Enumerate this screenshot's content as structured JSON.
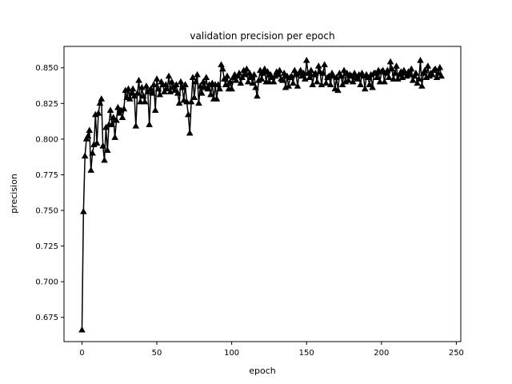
{
  "chart_data": {
    "type": "line",
    "title": "validation precision per epoch",
    "xlabel": "epoch",
    "ylabel": "precision",
    "xlim": [
      -12,
      253
    ],
    "ylim": [
      0.658,
      0.865
    ],
    "xticks": [
      0,
      50,
      100,
      150,
      200,
      250
    ],
    "yticks": [
      0.675,
      0.7,
      0.725,
      0.75,
      0.775,
      0.8,
      0.825,
      0.85
    ],
    "ytick_labels": [
      "0.675",
      "0.700",
      "0.725",
      "0.750",
      "0.775",
      "0.800",
      "0.825",
      "0.850"
    ],
    "xtick_labels": [
      "0",
      "50",
      "100",
      "150",
      "200",
      "250"
    ],
    "grid": false,
    "legend": "none",
    "marker": "triangle-up",
    "line_color": "#000000",
    "series": [
      {
        "values": [
          0.666,
          0.749,
          0.788,
          0.8,
          0.802,
          0.806,
          0.778,
          0.79,
          0.796,
          0.817,
          0.797,
          0.818,
          0.825,
          0.828,
          0.795,
          0.785,
          0.808,
          0.792,
          0.81,
          0.82,
          0.81,
          0.815,
          0.801,
          0.813,
          0.822,
          0.818,
          0.82,
          0.815,
          0.821,
          0.834,
          0.829,
          0.835,
          0.828,
          0.832,
          0.835,
          0.83,
          0.809,
          0.832,
          0.841,
          0.826,
          0.836,
          0.83,
          0.826,
          0.837,
          0.833,
          0.81,
          0.835,
          0.832,
          0.838,
          0.82,
          0.842,
          0.835,
          0.831,
          0.84,
          0.838,
          0.833,
          0.838,
          0.835,
          0.844,
          0.833,
          0.84,
          0.836,
          0.834,
          0.838,
          0.832,
          0.825,
          0.84,
          0.836,
          0.827,
          0.838,
          0.826,
          0.817,
          0.804,
          0.826,
          0.843,
          0.829,
          0.84,
          0.845,
          0.825,
          0.837,
          0.832,
          0.84,
          0.836,
          0.843,
          0.835,
          0.838,
          0.831,
          0.839,
          0.828,
          0.838,
          0.828,
          0.838,
          0.835,
          0.852,
          0.849,
          0.842,
          0.838,
          0.844,
          0.835,
          0.84,
          0.835,
          0.843,
          0.845,
          0.841,
          0.844,
          0.846,
          0.839,
          0.843,
          0.848,
          0.845,
          0.849,
          0.84,
          0.846,
          0.843,
          0.839,
          0.845,
          0.836,
          0.83,
          0.841,
          0.848,
          0.842,
          0.846,
          0.849,
          0.84,
          0.847,
          0.84,
          0.845,
          0.843,
          0.84,
          0.844,
          0.847,
          0.845,
          0.848,
          0.842,
          0.841,
          0.846,
          0.836,
          0.844,
          0.837,
          0.843,
          0.844,
          0.839,
          0.848,
          0.845,
          0.837,
          0.846,
          0.848,
          0.844,
          0.846,
          0.842,
          0.855,
          0.846,
          0.843,
          0.848,
          0.838,
          0.845,
          0.846,
          0.84,
          0.851,
          0.847,
          0.838,
          0.846,
          0.852,
          0.839,
          0.843,
          0.844,
          0.838,
          0.846,
          0.844,
          0.835,
          0.843,
          0.834,
          0.846,
          0.844,
          0.838,
          0.848,
          0.84,
          0.846,
          0.841,
          0.845,
          0.844,
          0.84,
          0.846,
          0.843,
          0.842,
          0.845,
          0.838,
          0.846,
          0.844,
          0.835,
          0.845,
          0.843,
          0.838,
          0.845,
          0.836,
          0.846,
          0.846,
          0.843,
          0.848,
          0.84,
          0.847,
          0.848,
          0.84,
          0.846,
          0.848,
          0.843,
          0.854,
          0.849,
          0.842,
          0.846,
          0.851,
          0.842,
          0.845,
          0.847,
          0.843,
          0.848,
          0.846,
          0.844,
          0.847,
          0.845,
          0.849,
          0.841,
          0.844,
          0.846,
          0.839,
          0.842,
          0.855,
          0.837,
          0.846,
          0.848,
          0.843,
          0.851,
          0.844,
          0.846,
          0.845,
          0.848,
          0.849,
          0.843,
          0.846,
          0.85,
          0.844
        ]
      }
    ]
  }
}
